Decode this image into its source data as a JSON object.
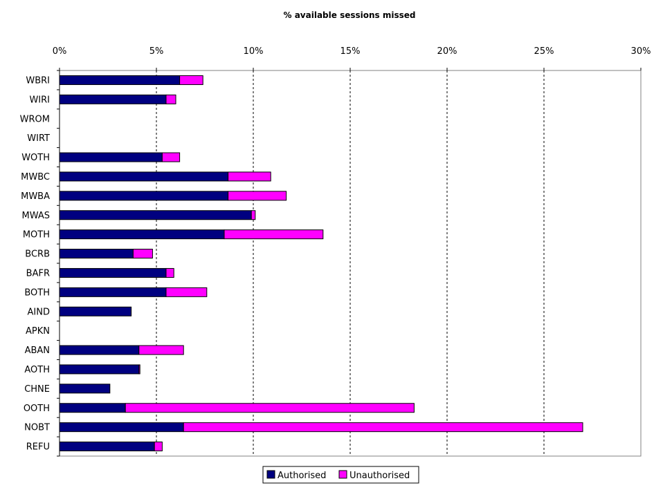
{
  "chart_data": {
    "type": "bar",
    "orientation": "horizontal",
    "stacked": true,
    "title": "% available sessions missed",
    "xlabel": "",
    "ylabel": "",
    "xlim": [
      0,
      30
    ],
    "x_ticks": [
      "0%",
      "5%",
      "10%",
      "15%",
      "20%",
      "25%",
      "30%"
    ],
    "x_tick_values": [
      0,
      5,
      10,
      15,
      20,
      25,
      30
    ],
    "x_axis_position": "top",
    "grid": "vertical-dashed",
    "legend_position": "bottom-center",
    "categories": [
      "WBRI",
      "WIRI",
      "WROM",
      "WIRT",
      "WOTH",
      "MWBC",
      "MWBA",
      "MWAS",
      "MOTH",
      "BCRB",
      "BAFR",
      "BOTH",
      "AIND",
      "APKN",
      "ABAN",
      "AOTH",
      "CHNE",
      "OOTH",
      "NOBT",
      "REFU"
    ],
    "series": [
      {
        "name": "Authorised",
        "color": "#000080",
        "values": [
          6.2,
          5.5,
          0,
          0,
          5.3,
          8.7,
          8.7,
          9.9,
          8.5,
          3.8,
          5.5,
          5.5,
          3.7,
          0,
          4.1,
          4.1,
          2.6,
          3.4,
          6.4,
          4.9
        ]
      },
      {
        "name": "Unauthorised",
        "color": "#FF00FF",
        "values": [
          1.2,
          0.5,
          0,
          0,
          0.9,
          2.2,
          3.0,
          0.2,
          5.1,
          1.0,
          0.4,
          2.1,
          0,
          0,
          2.3,
          0.05,
          0,
          14.9,
          20.6,
          0.4
        ]
      }
    ]
  }
}
